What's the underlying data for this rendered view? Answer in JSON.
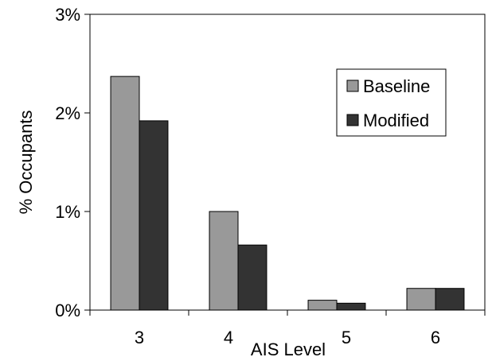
{
  "chart_data": {
    "type": "bar",
    "categories": [
      "3",
      "4",
      "5",
      "6"
    ],
    "series": [
      {
        "name": "Baseline",
        "values": [
          2.37,
          1.0,
          0.1,
          0.22
        ],
        "color": "#999999"
      },
      {
        "name": "Modified",
        "values": [
          1.92,
          0.66,
          0.07,
          0.22
        ],
        "color": "#333333"
      }
    ],
    "xlabel": "AIS Level",
    "ylabel": "% Occupants",
    "ylim": [
      0,
      3
    ],
    "yticks": [
      "0%",
      "1%",
      "2%",
      "3%"
    ],
    "ytick_values": [
      0,
      1,
      2,
      3
    ],
    "grid": false,
    "legend_position": "top-right"
  }
}
